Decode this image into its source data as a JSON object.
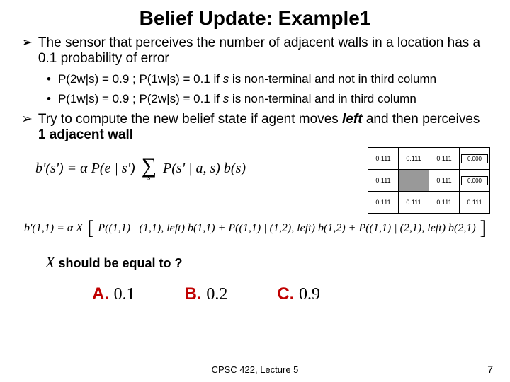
{
  "title": "Belief Update: Example1",
  "bullets": {
    "l1a": "The sensor that perceives the number of adjacent walls in a location has a 0.1 probability of error",
    "sub1_prefix": "P(2w|s) = 0.9 ;  P(1w|s) = 0.1 if ",
    "sub1_var": "s",
    "sub1_suffix": " is non-terminal and not in third column",
    "sub2_prefix": "P(1w|s) = 0.9 ;  P(2w|s) = 0.1 if ",
    "sub2_var": "s",
    "sub2_suffix": " is non-terminal and in third column",
    "l1b_prefix": "Try to compute the new belief state if agent moves ",
    "l1b_left": "left",
    "l1b_mid": " and then perceives ",
    "l1b_one": "1 adjacent wall"
  },
  "formula1": {
    "lhs": "b'(s') = α",
    "pe": " P(e | s') ",
    "sum_sub": "s",
    "rhs": "P(s' | a, s) b(s)"
  },
  "grid": {
    "cells": [
      [
        "0.111",
        "0.111",
        "0.111",
        "0.000"
      ],
      [
        "0.111",
        "",
        "0.111",
        "0.000"
      ],
      [
        "0.111",
        "0.111",
        "0.111",
        "0.111"
      ]
    ],
    "shaded_row": 1,
    "shaded_col": 1,
    "boxed": [
      [
        0,
        3
      ],
      [
        1,
        3
      ]
    ]
  },
  "formula2": "b'(1,1) = α   X   [ P((1,1) | (1,1), left) b(1,1) + P((1,1) | (1,2), left) b(1,2) + P((1,1) | (2,1), left) b(2,1) ]",
  "question_x": "X",
  "question_text": " should be equal to ?",
  "options": [
    {
      "letter": "A.",
      "value": "0.1"
    },
    {
      "letter": "B.",
      "value": "0.2"
    },
    {
      "letter": "C.",
      "value": "0.9"
    }
  ],
  "footer": "CPSC 422, Lecture 5",
  "page": "7",
  "colors": {
    "accent": "#c00000"
  }
}
